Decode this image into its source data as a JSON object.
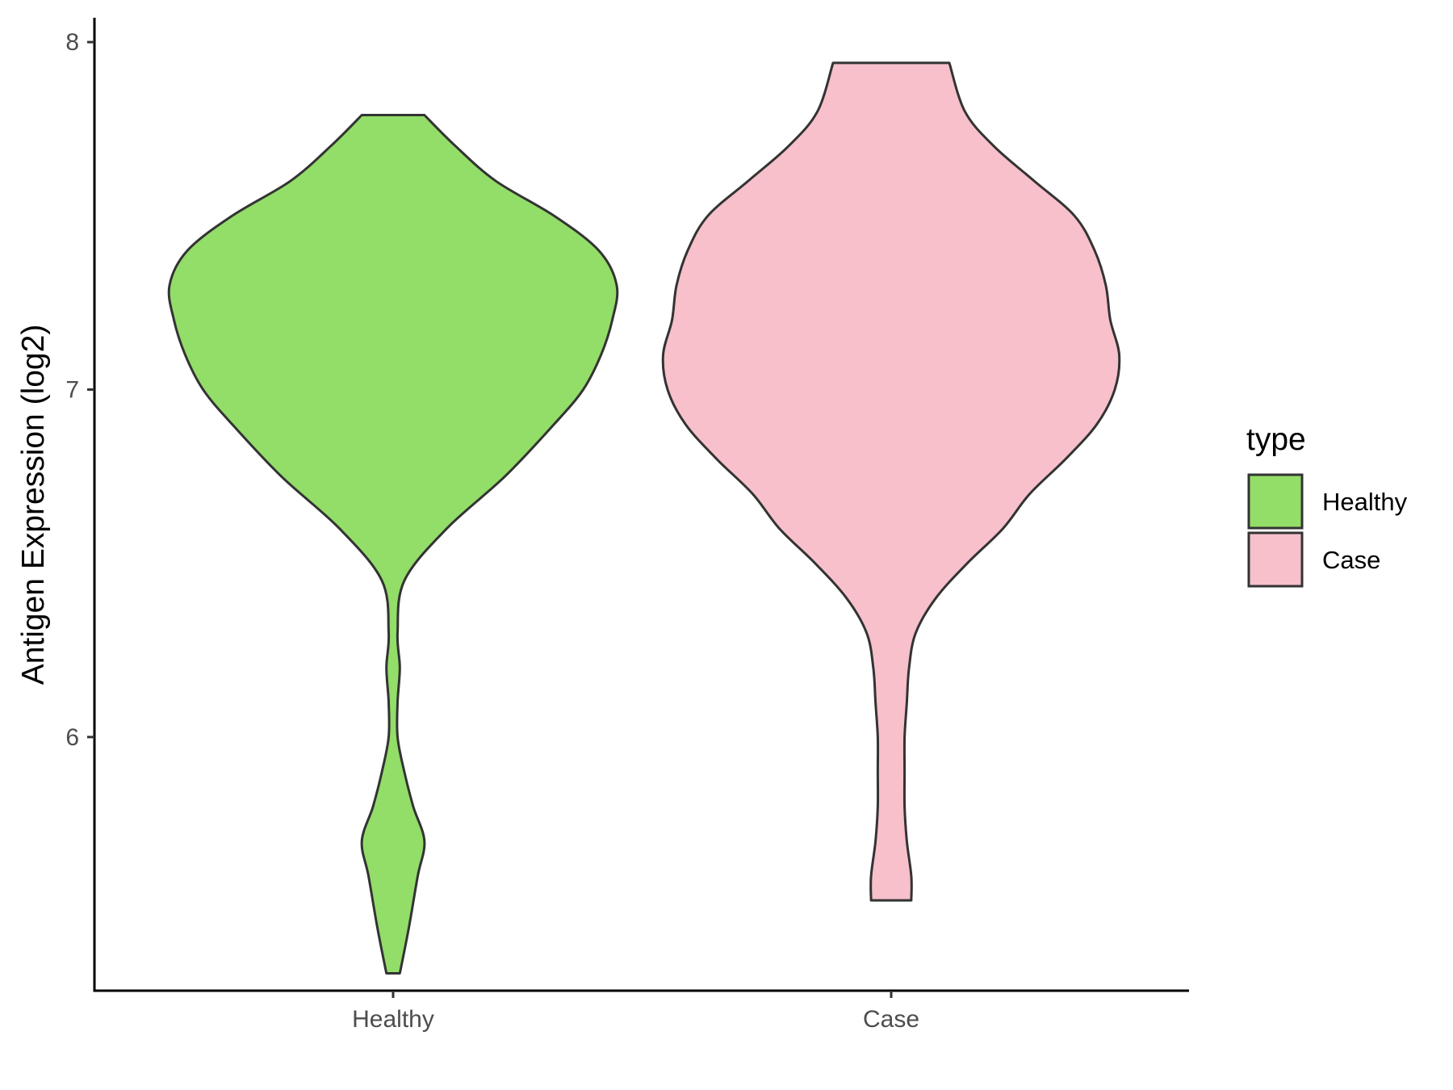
{
  "chart_data": {
    "type": "violin",
    "title": "",
    "xlabel": "",
    "ylabel": "Antigen Expression (log2)",
    "ylim": [
      5.27,
      8.07
    ],
    "yticks": [
      6,
      7,
      8
    ],
    "grid": false,
    "categories": [
      "Healthy",
      "Case"
    ],
    "legend": {
      "title": "type",
      "position": "right",
      "entries": [
        {
          "label": "Healthy",
          "color": "#93dd69"
        },
        {
          "label": "Case",
          "color": "#f7c0cb"
        }
      ]
    },
    "series": [
      {
        "name": "Healthy",
        "color": "#93dd69",
        "y_min": 5.32,
        "y_max": 7.79,
        "density_profile": [
          [
            5.32,
            0.03
          ],
          [
            5.45,
            0.07
          ],
          [
            5.6,
            0.11
          ],
          [
            5.7,
            0.14
          ],
          [
            5.8,
            0.09
          ],
          [
            5.9,
            0.05
          ],
          [
            6.0,
            0.02
          ],
          [
            6.1,
            0.02
          ],
          [
            6.2,
            0.03
          ],
          [
            6.3,
            0.02
          ],
          [
            6.45,
            0.05
          ],
          [
            6.6,
            0.24
          ],
          [
            6.75,
            0.5
          ],
          [
            6.9,
            0.72
          ],
          [
            7.0,
            0.85
          ],
          [
            7.1,
            0.93
          ],
          [
            7.2,
            0.98
          ],
          [
            7.3,
            1.0
          ],
          [
            7.4,
            0.92
          ],
          [
            7.5,
            0.72
          ],
          [
            7.6,
            0.46
          ],
          [
            7.7,
            0.28
          ],
          [
            7.79,
            0.14
          ]
        ]
      },
      {
        "name": "Case",
        "color": "#f7c0cb",
        "y_min": 5.53,
        "y_max": 7.94,
        "density_profile": [
          [
            5.53,
            0.09
          ],
          [
            5.6,
            0.09
          ],
          [
            5.7,
            0.07
          ],
          [
            5.8,
            0.06
          ],
          [
            5.9,
            0.06
          ],
          [
            6.0,
            0.06
          ],
          [
            6.1,
            0.07
          ],
          [
            6.2,
            0.08
          ],
          [
            6.3,
            0.11
          ],
          [
            6.4,
            0.2
          ],
          [
            6.5,
            0.34
          ],
          [
            6.6,
            0.5
          ],
          [
            6.7,
            0.62
          ],
          [
            6.8,
            0.78
          ],
          [
            6.9,
            0.92
          ],
          [
            7.0,
            1.0
          ],
          [
            7.1,
            1.02
          ],
          [
            7.2,
            0.98
          ],
          [
            7.3,
            0.96
          ],
          [
            7.4,
            0.91
          ],
          [
            7.5,
            0.82
          ],
          [
            7.6,
            0.64
          ],
          [
            7.7,
            0.46
          ],
          [
            7.8,
            0.33
          ],
          [
            7.94,
            0.26
          ]
        ]
      }
    ]
  }
}
